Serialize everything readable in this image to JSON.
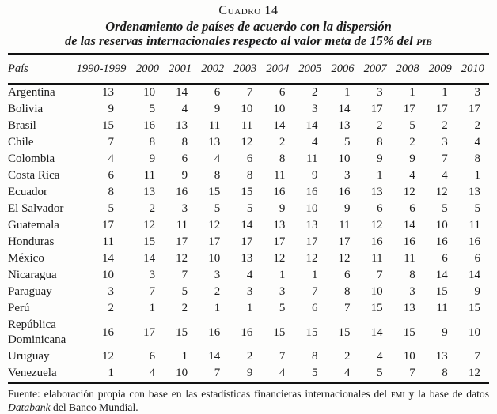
{
  "title": "Cuadro 14",
  "subtitle": {
    "line1": "Ordenamiento de países de acuerdo con la dispersión",
    "line2_pre": "de las reservas internacionales respecto al valor meta de 15% del ",
    "line2_acronym": "pib"
  },
  "table": {
    "country_header": "País",
    "year_headers": [
      "1990-1999",
      "2000",
      "2001",
      "2002",
      "2003",
      "2004",
      "2005",
      "2006",
      "2007",
      "2008",
      "2009",
      "2010"
    ],
    "rows": [
      {
        "country": "Argentina",
        "values": [
          13,
          10,
          14,
          6,
          7,
          6,
          2,
          1,
          3,
          1,
          1,
          3
        ]
      },
      {
        "country": "Bolivia",
        "values": [
          9,
          5,
          4,
          9,
          10,
          10,
          3,
          14,
          17,
          17,
          17,
          17
        ]
      },
      {
        "country": "Brasil",
        "values": [
          15,
          16,
          13,
          11,
          11,
          14,
          14,
          13,
          2,
          5,
          2,
          2
        ]
      },
      {
        "country": "Chile",
        "values": [
          7,
          8,
          8,
          13,
          12,
          2,
          4,
          5,
          8,
          2,
          3,
          4
        ]
      },
      {
        "country": "Colombia",
        "values": [
          4,
          9,
          6,
          4,
          6,
          8,
          11,
          10,
          9,
          9,
          7,
          8
        ]
      },
      {
        "country": "Costa Rica",
        "values": [
          6,
          11,
          9,
          8,
          8,
          11,
          9,
          3,
          1,
          4,
          4,
          1
        ]
      },
      {
        "country": "Ecuador",
        "values": [
          8,
          13,
          16,
          15,
          15,
          16,
          16,
          16,
          13,
          12,
          12,
          13
        ]
      },
      {
        "country": "El Salvador",
        "values": [
          5,
          2,
          3,
          5,
          5,
          9,
          10,
          9,
          6,
          6,
          5,
          5
        ]
      },
      {
        "country": "Guatemala",
        "values": [
          17,
          12,
          11,
          12,
          14,
          13,
          13,
          11,
          12,
          14,
          10,
          11
        ]
      },
      {
        "country": "Honduras",
        "values": [
          11,
          15,
          17,
          17,
          17,
          17,
          17,
          17,
          16,
          16,
          16,
          16
        ]
      },
      {
        "country": "México",
        "values": [
          14,
          14,
          12,
          10,
          13,
          12,
          12,
          12,
          11,
          11,
          6,
          6
        ]
      },
      {
        "country": "Nicaragua",
        "values": [
          10,
          3,
          7,
          3,
          4,
          1,
          1,
          6,
          7,
          8,
          14,
          14
        ]
      },
      {
        "country": "Paraguay",
        "values": [
          3,
          7,
          5,
          2,
          3,
          3,
          7,
          8,
          10,
          3,
          15,
          9
        ]
      },
      {
        "country": "Perú",
        "values": [
          2,
          1,
          2,
          1,
          1,
          5,
          6,
          7,
          15,
          13,
          11,
          15
        ]
      },
      {
        "country": "República Dominicana",
        "values": [
          16,
          17,
          15,
          16,
          16,
          15,
          15,
          15,
          14,
          15,
          9,
          10
        ]
      },
      {
        "country": "Uruguay",
        "values": [
          12,
          6,
          1,
          14,
          2,
          7,
          8,
          2,
          4,
          10,
          13,
          7
        ]
      },
      {
        "country": "Venezuela",
        "values": [
          1,
          4,
          10,
          7,
          9,
          4,
          5,
          4,
          5,
          7,
          8,
          12
        ]
      }
    ]
  },
  "footer": {
    "segments": [
      {
        "text": "Fuente: elaboración propia con base en las estadísticas financieras internacionales del ",
        "style": "normal"
      },
      {
        "text": "fmi",
        "style": "smallcaps"
      },
      {
        "text": " y la base de datos ",
        "style": "normal"
      },
      {
        "text": "Databank",
        "style": "italic"
      },
      {
        "text": " del Banco Mundial.",
        "style": "normal"
      }
    ]
  }
}
